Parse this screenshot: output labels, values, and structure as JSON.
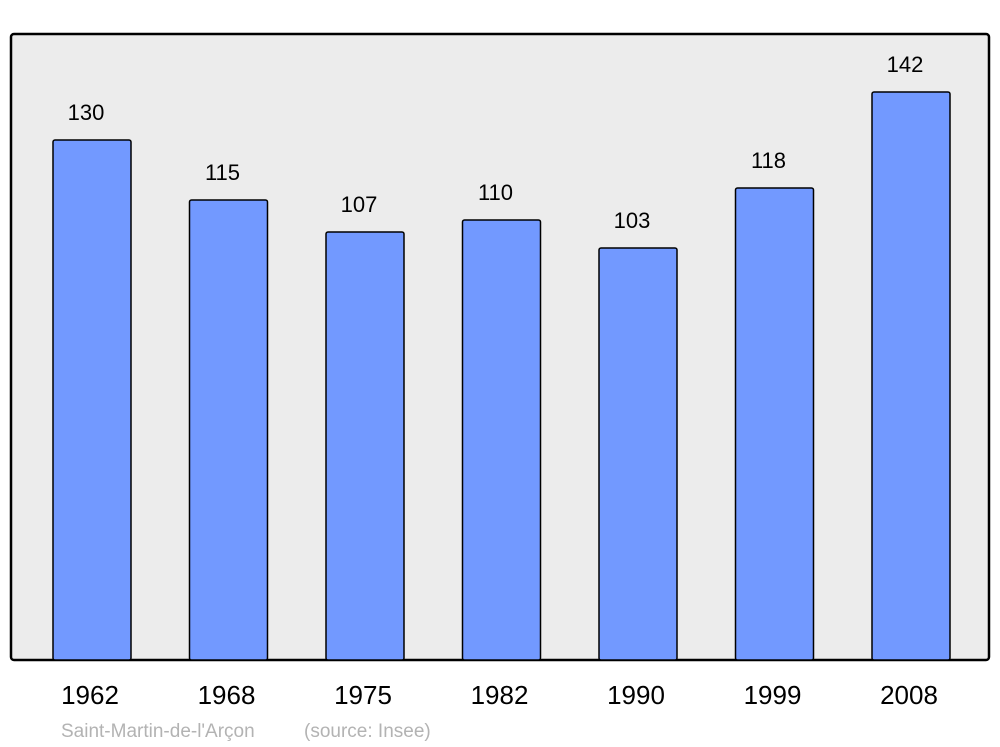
{
  "chart_data": {
    "type": "bar",
    "categories": [
      "1962",
      "1968",
      "1975",
      "1982",
      "1990",
      "1999",
      "2008"
    ],
    "values": [
      130,
      115,
      107,
      110,
      103,
      118,
      142
    ],
    "data_labels": [
      "130",
      "115",
      "107",
      "110",
      "103",
      "118",
      "142"
    ],
    "title": "",
    "xlabel": "",
    "ylabel": "",
    "ylim": [
      0,
      156.5
    ],
    "grid": false,
    "legend": "none",
    "colors": {
      "bar": "#7299ff",
      "plot_background": "#ececec",
      "border": "#000000",
      "footer_text": "#b3b3b3"
    }
  },
  "footer": {
    "place": "Saint-Martin-de-l'Arçon",
    "source": "(source: Insee)"
  }
}
